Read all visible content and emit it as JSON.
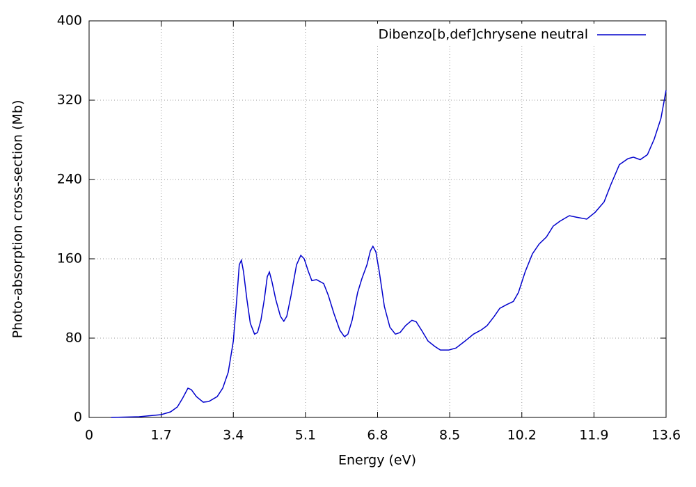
{
  "chart_data": {
    "type": "line",
    "xlabel": "Energy (eV)",
    "ylabel": "Photo-absorption cross-section (Mb)",
    "x": [
      0.52,
      1.18,
      1.7,
      1.92,
      2.08,
      2.2,
      2.33,
      2.41,
      2.53,
      2.69,
      2.82,
      3.02,
      3.15,
      3.28,
      3.4,
      3.48,
      3.54,
      3.59,
      3.64,
      3.72,
      3.8,
      3.9,
      3.97,
      4.05,
      4.13,
      4.2,
      4.25,
      4.31,
      4.4,
      4.51,
      4.59,
      4.66,
      4.76,
      4.89,
      4.99,
      5.07,
      5.17,
      5.25,
      5.36,
      5.53,
      5.64,
      5.77,
      5.91,
      6.02,
      6.1,
      6.2,
      6.33,
      6.43,
      6.55,
      6.63,
      6.69,
      6.76,
      6.84,
      6.96,
      7.09,
      7.22,
      7.33,
      7.46,
      7.61,
      7.71,
      7.84,
      7.99,
      8.15,
      8.28,
      8.48,
      8.65,
      8.86,
      9.06,
      9.25,
      9.38,
      9.55,
      9.68,
      9.84,
      10.0,
      10.12,
      10.28,
      10.45,
      10.61,
      10.78,
      10.94,
      11.1,
      11.32,
      11.48,
      11.73,
      11.93,
      12.14,
      12.3,
      12.5,
      12.7,
      12.83,
      12.99,
      13.16,
      13.32,
      13.48,
      13.6
    ],
    "series": [
      {
        "name": "Dibenzo[b,def]chrysene neutral",
        "color": "#0000cc",
        "values": [
          0,
          0.7,
          2.8,
          5.6,
          10.5,
          19,
          29.5,
          28,
          21,
          15.4,
          16,
          21,
          29.5,
          45.6,
          77,
          119,
          154,
          158.6,
          147,
          119,
          95,
          84,
          85.6,
          98,
          119,
          142,
          146.7,
          137,
          119,
          102,
          97,
          102,
          123,
          154,
          163.5,
          160,
          147,
          138,
          139,
          135,
          123,
          105,
          88,
          81.4,
          84,
          98,
          126,
          140,
          154,
          168,
          172.6,
          167,
          147,
          112,
          91,
          84,
          85.6,
          92.6,
          98,
          96.5,
          87.7,
          77,
          71.6,
          68,
          68,
          70,
          77,
          84,
          88.4,
          92.6,
          102,
          110,
          113.7,
          117,
          126,
          147,
          165,
          175,
          182,
          193,
          198,
          203.5,
          202,
          200,
          207,
          217.5,
          235,
          255,
          261,
          262.5,
          260,
          265,
          280.7,
          301.8,
          330
        ]
      }
    ],
    "xlim": [
      0,
      13.6
    ],
    "xticks": [
      0,
      1.7,
      3.4,
      5.1,
      6.8,
      8.5,
      10.2,
      11.9,
      13.6
    ],
    "ylim": [
      0,
      400
    ],
    "yticks": [
      0,
      80,
      160,
      240,
      320,
      400
    ],
    "grid": true,
    "legend": "upper right"
  }
}
